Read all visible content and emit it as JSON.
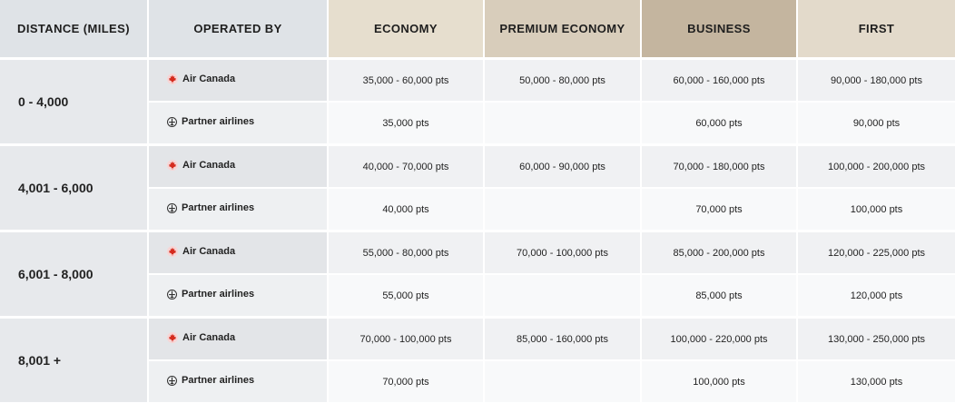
{
  "headers": {
    "distance": "DISTANCE (MILES)",
    "operated_by": "OPERATED BY",
    "economy": "ECONOMY",
    "premium_economy": "PREMIUM ECONOMY",
    "business": "BUSINESS",
    "first": "FIRST"
  },
  "colors": {
    "air_canada_red": "#d52b1e",
    "header_economy": "#e6dece",
    "header_premium": "#d8cdbb",
    "header_business": "#c4b59f",
    "header_first": "#e3dacb",
    "header_grey": "#dfe3e7"
  },
  "icons": {
    "air_canada": "maple-leaf-icon",
    "partner": "plane-circle-icon"
  },
  "rows": [
    {
      "distance": "0 - 4,000",
      "air_canada": {
        "label": "Air Canada",
        "economy": "35,000 - 60,000 pts",
        "premium_economy": "50,000 - 80,000 pts",
        "business": "60,000 - 160,000 pts",
        "first": "90,000 - 180,000 pts"
      },
      "partner": {
        "label": "Partner airlines",
        "economy": "35,000 pts",
        "premium_economy": "",
        "business": "60,000 pts",
        "first": "90,000 pts"
      }
    },
    {
      "distance": "4,001 - 6,000",
      "air_canada": {
        "label": "Air Canada",
        "economy": "40,000 - 70,000 pts",
        "premium_economy": "60,000 - 90,000 pts",
        "business": "70,000 - 180,000 pts",
        "first": "100,000 - 200,000 pts"
      },
      "partner": {
        "label": "Partner airlines",
        "economy": "40,000 pts",
        "premium_economy": "",
        "business": "70,000 pts",
        "first": "100,000 pts"
      }
    },
    {
      "distance": "6,001 - 8,000",
      "air_canada": {
        "label": "Air Canada",
        "economy": "55,000 - 80,000 pts",
        "premium_economy": "70,000 - 100,000 pts",
        "business": "85,000 - 200,000 pts",
        "first": "120,000 - 225,000 pts"
      },
      "partner": {
        "label": "Partner airlines",
        "economy": "55,000 pts",
        "premium_economy": "",
        "business": "85,000 pts",
        "first": "120,000 pts"
      }
    },
    {
      "distance": "8,001 +",
      "air_canada": {
        "label": "Air Canada",
        "economy": "70,000 - 100,000 pts",
        "premium_economy": "85,000 - 160,000 pts",
        "business": "100,000 - 220,000 pts",
        "first": "130,000 - 250,000 pts"
      },
      "partner": {
        "label": "Partner airlines",
        "economy": "70,000 pts",
        "premium_economy": "",
        "business": "100,000 pts",
        "first": "130,000 pts"
      }
    }
  ]
}
